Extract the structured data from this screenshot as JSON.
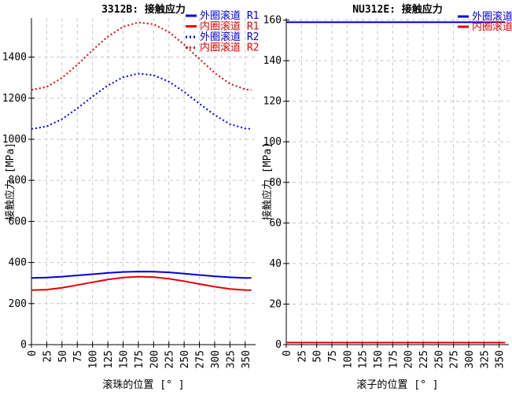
{
  "window": {
    "background": "#FFFFFF"
  },
  "colors": {
    "axis": "#000000",
    "grid": "#C8C8C8",
    "text": "#000000",
    "outer_raceway_blue": "#0000E0",
    "inner_raceway_red": "#E60000"
  },
  "chart_data": [
    {
      "type": "line",
      "title": "3312B: 接触应力",
      "xlabel": "滚珠的位置 [° ]",
      "ylabel": "接触应力 [MPa]",
      "xlim": [
        0,
        367
      ],
      "ylim": [
        0,
        1590
      ],
      "xticks": [
        0,
        25,
        50,
        75,
        100,
        125,
        150,
        175,
        200,
        225,
        250,
        275,
        300,
        325,
        350
      ],
      "yticks": [
        0,
        200,
        400,
        600,
        800,
        1000,
        1200,
        1400
      ],
      "grid": true,
      "legend_position": "top-right",
      "x": [
        0,
        25,
        50,
        75,
        100,
        125,
        150,
        175,
        200,
        225,
        250,
        275,
        300,
        325,
        350,
        360
      ],
      "series": [
        {
          "name": "外圈滚道 R1",
          "color": "#0000E0",
          "line_style": "solid",
          "values": [
            325,
            327,
            331,
            337,
            343,
            349,
            354,
            356,
            355,
            352,
            346,
            339,
            333,
            328,
            325,
            325
          ]
        },
        {
          "name": "内圈滚道 R1",
          "color": "#E60000",
          "line_style": "solid",
          "values": [
            265,
            268,
            277,
            290,
            304,
            317,
            327,
            331,
            329,
            321,
            309,
            295,
            282,
            271,
            266,
            265
          ]
        },
        {
          "name": "外圈滚道 R2",
          "color": "#0000E0",
          "line_style": "dotted",
          "values": [
            1050,
            1063,
            1098,
            1150,
            1208,
            1262,
            1302,
            1320,
            1312,
            1281,
            1231,
            1173,
            1118,
            1074,
            1052,
            1050
          ]
        },
        {
          "name": "内圈滚道 R2",
          "color": "#E60000",
          "line_style": "dotted",
          "values": [
            1240,
            1255,
            1299,
            1362,
            1434,
            1500,
            1548,
            1569,
            1560,
            1522,
            1461,
            1391,
            1323,
            1270,
            1243,
            1240
          ]
        }
      ]
    },
    {
      "type": "line",
      "title": "NU312E: 接触应力",
      "xlabel": "滚子的位置 [° ]",
      "ylabel": "接触应力 [MPa]",
      "xlim": [
        0,
        366
      ],
      "ylim": [
        0,
        161
      ],
      "xticks": [
        0,
        25,
        50,
        75,
        100,
        125,
        150,
        175,
        200,
        225,
        250,
        275,
        300,
        325,
        350
      ],
      "yticks": [
        0,
        20,
        40,
        60,
        80,
        100,
        120,
        140,
        160
      ],
      "grid": true,
      "legend_position": "top-right",
      "x": [
        0,
        25,
        50,
        75,
        100,
        125,
        150,
        175,
        200,
        225,
        250,
        275,
        300,
        325,
        350,
        360
      ],
      "series": [
        {
          "name": "外圈滚道",
          "color": "#0000E0",
          "line_style": "solid",
          "values": [
            159,
            159,
            159,
            159,
            159,
            159,
            159,
            159,
            159,
            159,
            159,
            159,
            159,
            159,
            159,
            159
          ]
        },
        {
          "name": "内圈滚道",
          "color": "#E60000",
          "line_style": "solid",
          "values": [
            1,
            1,
            1,
            1,
            1,
            1,
            1,
            1,
            1,
            1,
            1,
            1,
            1,
            1,
            1,
            1
          ]
        }
      ]
    }
  ]
}
